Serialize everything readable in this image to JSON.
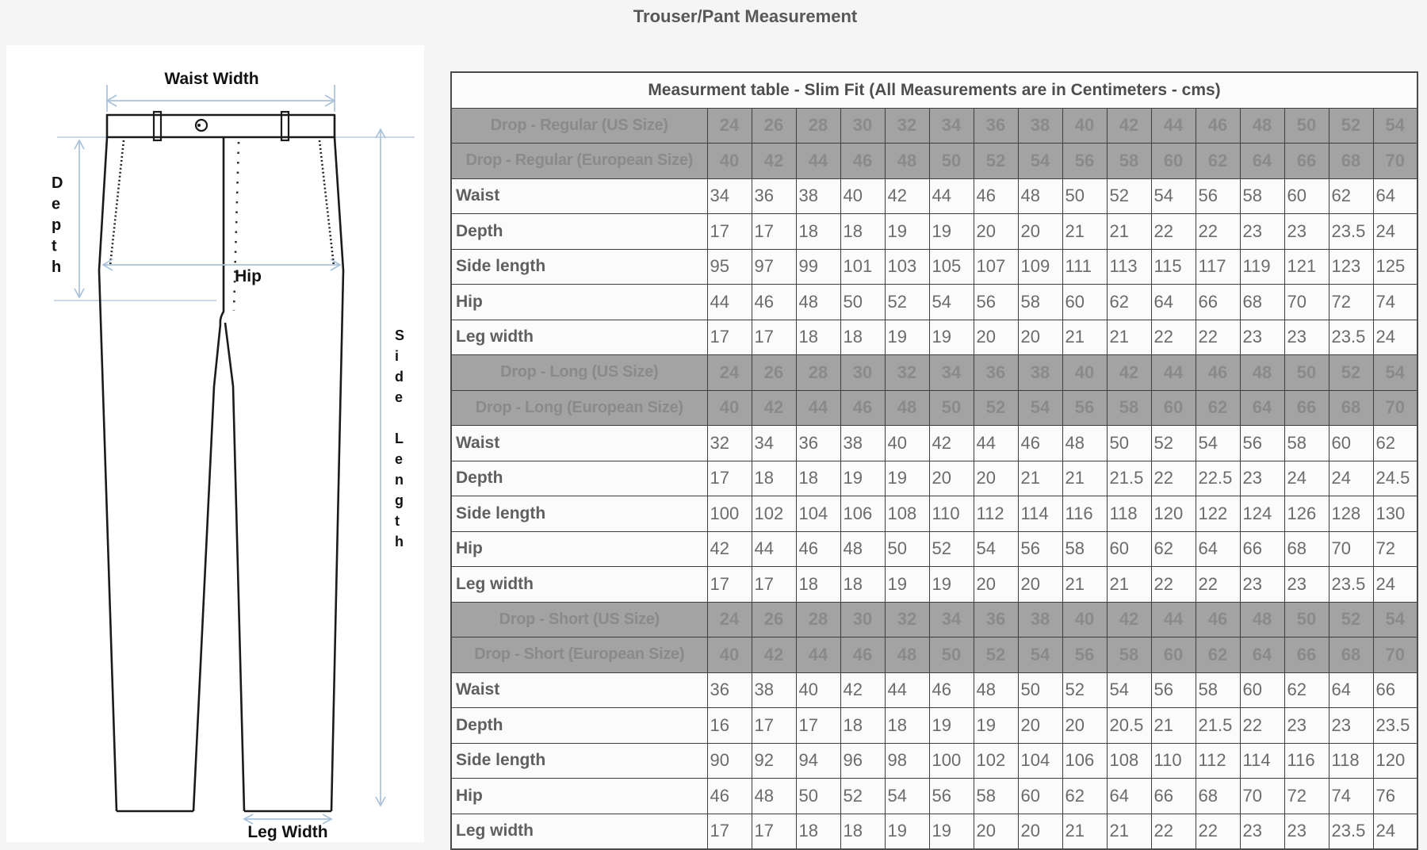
{
  "page": {
    "title": "Trouser/Pant Measurement"
  },
  "diagram": {
    "labels": {
      "waist_width": "Waist Width",
      "depth": "Depth",
      "hip": "Hip",
      "side_length": "Side Length",
      "leg_width": "Leg Width"
    },
    "colors": {
      "outline": "#1b1b1b",
      "arrow": "#a9c2dc"
    }
  },
  "table": {
    "title": "Measurment table - Slim Fit (All Measurements are in Centimeters - cms)",
    "colors": {
      "size_row_bg": "#a3a3a3",
      "size_row_text": "#8a8a8a",
      "border": "#3e3e3e",
      "value_text": "#6b6b6b"
    },
    "sections": [
      {
        "us_label": "Drop - Regular (US Size)",
        "us_sizes": [
          "24",
          "26",
          "28",
          "30",
          "32",
          "34",
          "36",
          "38",
          "40",
          "42",
          "44",
          "46",
          "48",
          "50",
          "52",
          "54"
        ],
        "eu_label": "Drop - Regular (European Size)",
        "eu_sizes": [
          "40",
          "42",
          "44",
          "46",
          "48",
          "50",
          "52",
          "54",
          "56",
          "58",
          "60",
          "62",
          "64",
          "66",
          "68",
          "70"
        ],
        "rows": [
          {
            "label": "Waist",
            "values": [
              "34",
              "36",
              "38",
              "40",
              "42",
              "44",
              "46",
              "48",
              "50",
              "52",
              "54",
              "56",
              "58",
              "60",
              "62",
              "64"
            ]
          },
          {
            "label": "Depth",
            "values": [
              "17",
              "17",
              "18",
              "18",
              "19",
              "19",
              "20",
              "20",
              "21",
              "21",
              "22",
              "22",
              "23",
              "23",
              "23.5",
              "24"
            ]
          },
          {
            "label": "Side length",
            "values": [
              "95",
              "97",
              "99",
              "101",
              "103",
              "105",
              "107",
              "109",
              "111",
              "113",
              "115",
              "117",
              "119",
              "121",
              "123",
              "125"
            ]
          },
          {
            "label": "Hip",
            "values": [
              "44",
              "46",
              "48",
              "50",
              "52",
              "54",
              "56",
              "58",
              "60",
              "62",
              "64",
              "66",
              "68",
              "70",
              "72",
              "74"
            ]
          },
          {
            "label": "Leg width",
            "values": [
              "17",
              "17",
              "18",
              "18",
              "19",
              "19",
              "20",
              "20",
              "21",
              "21",
              "22",
              "22",
              "23",
              "23",
              "23.5",
              "24"
            ]
          }
        ]
      },
      {
        "us_label": "Drop - Long (US Size)",
        "us_sizes": [
          "24",
          "26",
          "28",
          "30",
          "32",
          "34",
          "36",
          "38",
          "40",
          "42",
          "44",
          "46",
          "48",
          "50",
          "52",
          "54"
        ],
        "eu_label": "Drop - Long (European Size)",
        "eu_sizes": [
          "40",
          "42",
          "44",
          "46",
          "48",
          "50",
          "52",
          "54",
          "56",
          "58",
          "60",
          "62",
          "64",
          "66",
          "68",
          "70"
        ],
        "rows": [
          {
            "label": "Waist",
            "values": [
              "32",
              "34",
              "36",
              "38",
              "40",
              "42",
              "44",
              "46",
              "48",
              "50",
              "52",
              "54",
              "56",
              "58",
              "60",
              "62"
            ]
          },
          {
            "label": "Depth",
            "values": [
              "17",
              "18",
              "18",
              "19",
              "19",
              "20",
              "20",
              "21",
              "21",
              "21.5",
              "22",
              "22.5",
              "23",
              "24",
              "24",
              "24.5"
            ]
          },
          {
            "label": "Side length",
            "values": [
              "100",
              "102",
              "104",
              "106",
              "108",
              "110",
              "112",
              "114",
              "116",
              "118",
              "120",
              "122",
              "124",
              "126",
              "128",
              "130"
            ]
          },
          {
            "label": "Hip",
            "values": [
              "42",
              "44",
              "46",
              "48",
              "50",
              "52",
              "54",
              "56",
              "58",
              "60",
              "62",
              "64",
              "66",
              "68",
              "70",
              "72"
            ]
          },
          {
            "label": "Leg width",
            "values": [
              "17",
              "17",
              "18",
              "18",
              "19",
              "19",
              "20",
              "20",
              "21",
              "21",
              "22",
              "22",
              "23",
              "23",
              "23.5",
              "24"
            ]
          }
        ]
      },
      {
        "us_label": "Drop - Short (US Size)",
        "us_sizes": [
          "24",
          "26",
          "28",
          "30",
          "32",
          "34",
          "36",
          "38",
          "40",
          "42",
          "44",
          "46",
          "48",
          "50",
          "52",
          "54"
        ],
        "eu_label": "Drop - Short (European Size)",
        "eu_sizes": [
          "40",
          "42",
          "44",
          "46",
          "48",
          "50",
          "52",
          "54",
          "56",
          "58",
          "60",
          "62",
          "64",
          "66",
          "68",
          "70"
        ],
        "rows": [
          {
            "label": "Waist",
            "values": [
              "36",
              "38",
              "40",
              "42",
              "44",
              "46",
              "48",
              "50",
              "52",
              "54",
              "56",
              "58",
              "60",
              "62",
              "64",
              "66"
            ]
          },
          {
            "label": "Depth",
            "values": [
              "16",
              "17",
              "17",
              "18",
              "18",
              "19",
              "19",
              "20",
              "20",
              "20.5",
              "21",
              "21.5",
              "22",
              "23",
              "23",
              "23.5"
            ]
          },
          {
            "label": "Side length",
            "values": [
              "90",
              "92",
              "94",
              "96",
              "98",
              "100",
              "102",
              "104",
              "106",
              "108",
              "110",
              "112",
              "114",
              "116",
              "118",
              "120"
            ]
          },
          {
            "label": "Hip",
            "values": [
              "46",
              "48",
              "50",
              "52",
              "54",
              "56",
              "58",
              "60",
              "62",
              "64",
              "66",
              "68",
              "70",
              "72",
              "74",
              "76"
            ]
          },
          {
            "label": "Leg width",
            "values": [
              "17",
              "17",
              "18",
              "18",
              "19",
              "19",
              "20",
              "20",
              "21",
              "21",
              "22",
              "22",
              "23",
              "23",
              "23.5",
              "24"
            ]
          }
        ]
      }
    ]
  }
}
